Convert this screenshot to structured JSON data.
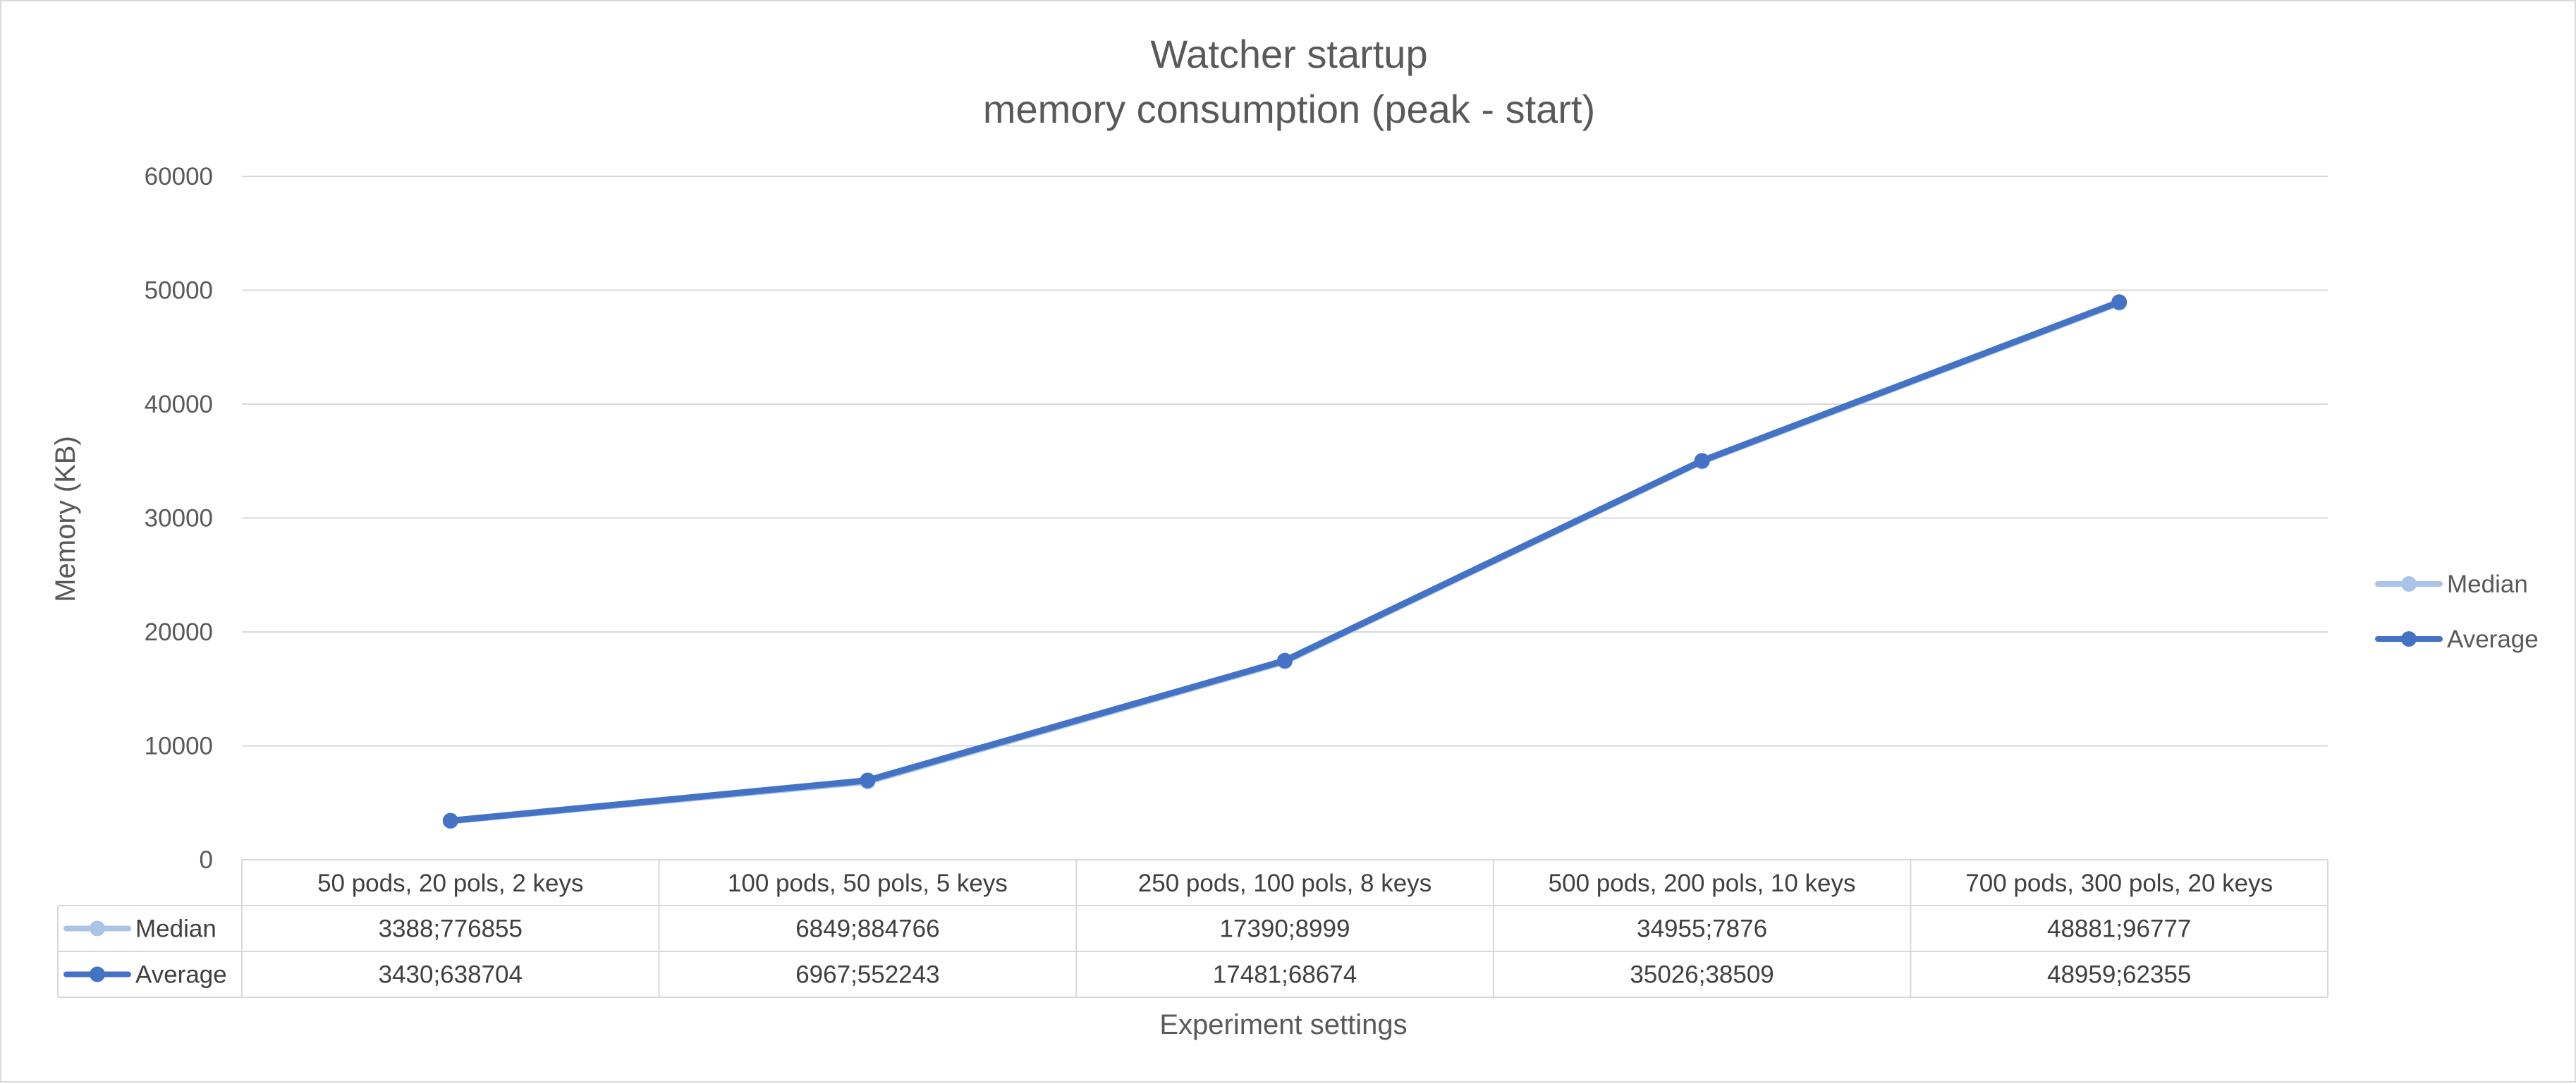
{
  "chart_data": {
    "type": "line",
    "title": [
      "Watcher startup",
      "memory consumption (peak - start)"
    ],
    "xlabel": "Experiment settings",
    "ylabel": "Memory  (KB)",
    "ylim": [
      0,
      60000
    ],
    "yticks": [
      "0",
      "10000",
      "20000",
      "30000",
      "40000",
      "50000",
      "60000"
    ],
    "grid": true,
    "legend_position": "right",
    "categories": [
      "50 pods, 20 pols, 2 keys",
      "100 pods, 50 pols, 5 keys",
      "250 pods, 100 pols, 8 keys",
      "500 pods, 200 pols, 10 keys",
      "700 pods, 300 pols, 20 keys"
    ],
    "series": [
      {
        "name": "Median",
        "color": "#a9c4e6",
        "values": [
          3388.776855,
          6849.884766,
          17390.8999,
          34955.7876,
          48881.96777
        ],
        "labels": [
          "3388;776855",
          "6849;884766",
          "17390;8999",
          "34955;7876",
          "48881;96777"
        ]
      },
      {
        "name": "Average",
        "color": "#4472c4",
        "values": [
          3430.638704,
          6967.552243,
          17481.68674,
          35026.38509,
          48959.62355
        ],
        "labels": [
          "3430;638704",
          "6967;552243",
          "17481;68674",
          "35026;38509",
          "48959;62355"
        ]
      }
    ]
  }
}
